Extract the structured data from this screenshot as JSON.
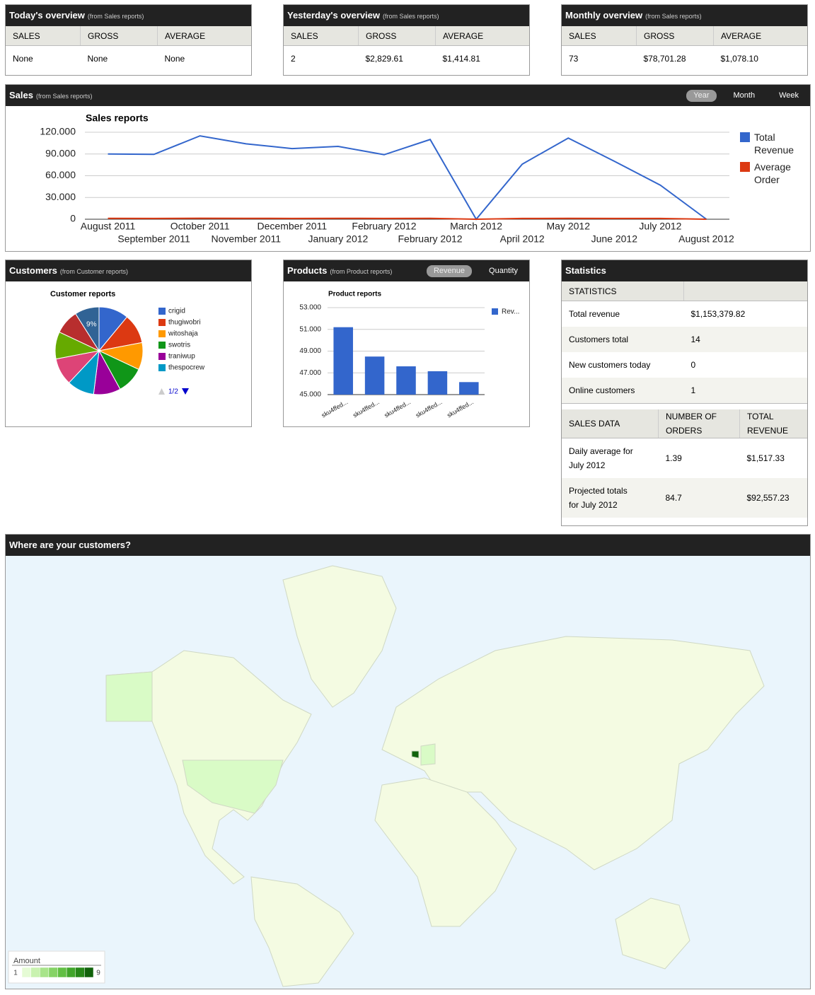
{
  "overview": [
    {
      "title": "Today's overview",
      "source": "(from Sales reports)",
      "headers": [
        "SALES",
        "GROSS",
        "AVERAGE"
      ],
      "values": [
        "None",
        "None",
        "None"
      ]
    },
    {
      "title": "Yesterday's overview",
      "source": "(from Sales reports)",
      "headers": [
        "SALES",
        "GROSS",
        "AVERAGE"
      ],
      "values": [
        "2",
        "$2,829.61",
        "$1,414.81"
      ]
    },
    {
      "title": "Monthly overview",
      "source": "(from Sales reports)",
      "headers": [
        "SALES",
        "GROSS",
        "AVERAGE"
      ],
      "values": [
        "73",
        "$78,701.28",
        "$1,078.10"
      ]
    }
  ],
  "sales": {
    "title": "Sales",
    "source": "(from Sales reports)",
    "tabs": [
      "Year",
      "Month",
      "Week"
    ],
    "chart": {
      "type": "line",
      "title": "Sales reports",
      "categories": [
        "August 2011",
        "September 2011",
        "October 2011",
        "November 2011",
        "December 2011",
        "January 2012",
        "February 2012",
        "February 2012",
        "March 2012",
        "April 2012",
        "May 2012",
        "June 2012",
        "July 2012",
        "August 2012"
      ],
      "series": [
        {
          "name": "Total Revenue",
          "color": "#3366cc",
          "values": [
            90000,
            89500,
            115000,
            104000,
            97500,
            100500,
            89000,
            110000,
            0,
            76000,
            112000,
            80000,
            47000,
            0
          ]
        },
        {
          "name": "Average Order",
          "color": "#dc3912",
          "values": [
            1200,
            1150,
            1300,
            1250,
            1100,
            1200,
            1150,
            1250,
            0,
            1100,
            1200,
            1150,
            1100,
            0
          ]
        }
      ],
      "ylim": [
        0,
        120000
      ],
      "yticks": [
        0,
        {
          "value": 30000,
          "label": "30.000"
        },
        {
          "value": 60000,
          "label": "60.000"
        },
        {
          "value": 90000,
          "label": "90.000"
        },
        {
          "value": 120000,
          "label": "120.000"
        }
      ],
      "grid": true,
      "legend": "right"
    }
  },
  "customers": {
    "title": "Customers",
    "source": "(from Customer reports)",
    "chart": {
      "type": "pie",
      "title": "Customer reports",
      "categories": [
        "crigid",
        "thugiwobri",
        "witoshaja",
        "swotris",
        "traniwup",
        "thespocrew",
        null,
        null,
        null,
        null
      ],
      "values": [
        11,
        11,
        10,
        10,
        10,
        10,
        10,
        10,
        9,
        9
      ],
      "value_labels": [
        null,
        null,
        null,
        null,
        null,
        null,
        null,
        null,
        null,
        "9%"
      ],
      "colors": [
        "#3366cc",
        "#dc3912",
        "#ff9900",
        "#109618",
        "#990099",
        "#0099c6",
        "#dd4477",
        "#66aa00",
        "#b82e2e",
        "#316395"
      ],
      "legend": "right",
      "legend_page": "1/2"
    }
  },
  "products": {
    "title": "Products",
    "source": "(from Product reports)",
    "tabs": [
      "Revenue",
      "Quantity"
    ],
    "chart": {
      "type": "bar",
      "title": "Product reports",
      "categories": [
        "sku4ffed...",
        "sku4ffed...",
        "sku4ffed...",
        "sku4ffed...",
        "sku4ffed..."
      ],
      "series": [
        {
          "name": "Rev...",
          "color": "#3366cc",
          "values": [
            51200,
            48500,
            47600,
            47150,
            46150
          ]
        }
      ],
      "ylim": [
        45000,
        53000
      ],
      "yticks": [
        {
          "value": 45000,
          "label": "45.000"
        },
        {
          "value": 47000,
          "label": "47.000"
        },
        {
          "value": 49000,
          "label": "49.000"
        },
        {
          "value": 51000,
          "label": "51.000"
        },
        {
          "value": 53000,
          "label": "53.000"
        }
      ],
      "grid": true,
      "legend": "right"
    }
  },
  "statistics": {
    "title": "Statistics",
    "table": {
      "headers": [
        "STATISTICS"
      ],
      "rows": [
        [
          "Total revenue",
          "$1,153,379.82"
        ],
        [
          "Customers total",
          "14"
        ],
        [
          "New customers today",
          "0"
        ],
        [
          "Online customers",
          "1"
        ]
      ]
    },
    "sales_table": {
      "headers": [
        "SALES DATA",
        "NUMBER OF ORDERS",
        "TOTAL REVENUE"
      ],
      "rows": [
        [
          "Daily average for July 2012",
          "1.39",
          "$1,517.33"
        ],
        [
          "Projected totals for July 2012",
          "84.7",
          "$92,557.23"
        ]
      ]
    }
  },
  "map": {
    "title": "Where are your customers?",
    "legend_title": "Amount",
    "colorbar": {
      "min": 1,
      "max": 9,
      "colors": [
        "#e5fbd5",
        "#c9f2b0",
        "#a8e48a",
        "#86d366",
        "#62bf44",
        "#41a52a",
        "#278718",
        "#11620b"
      ]
    }
  }
}
